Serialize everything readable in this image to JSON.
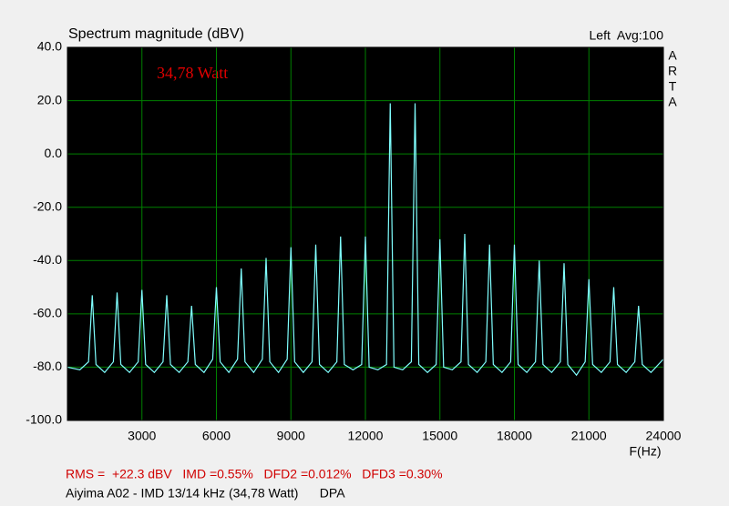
{
  "chart_data": {
    "type": "line",
    "title": "Spectrum magnitude (dBV)",
    "channel_info": "Left  Avg:100",
    "logo": [
      "A",
      "R",
      "T",
      "A"
    ],
    "annotation": "34,78 Watt",
    "x_label": "F(Hz)",
    "results": "RMS =  +22.3 dBV   IMD =0.55%   DFD2 =0.012%   DFD3 =0.30%",
    "caption": "Aiyima A02 - IMD 13/14 kHz (34,78 Watt)      DPA",
    "xlim": [
      0,
      24000
    ],
    "xticks": [
      3000,
      6000,
      9000,
      12000,
      15000,
      18000,
      21000,
      24000
    ],
    "ylim": [
      -100,
      40
    ],
    "yticks": [
      {
        "value": -100,
        "label": "-100.0"
      },
      {
        "value": -80,
        "label": "-80.0"
      },
      {
        "value": -60,
        "label": "-60.0"
      },
      {
        "value": -40,
        "label": "-40.0"
      },
      {
        "value": -20,
        "label": "-20.0"
      },
      {
        "value": 0,
        "label": "0.0"
      },
      {
        "value": 20,
        "label": "20.0"
      },
      {
        "value": 40,
        "label": "40.0"
      }
    ],
    "grid": true,
    "x": [
      0,
      500,
      850,
      1000,
      1150,
      1500,
      1850,
      2000,
      2150,
      2500,
      2850,
      3000,
      3150,
      3500,
      3850,
      4000,
      4150,
      4500,
      4850,
      5000,
      5150,
      5500,
      5850,
      6000,
      6150,
      6500,
      6850,
      7000,
      7150,
      7500,
      7850,
      8000,
      8150,
      8500,
      8850,
      9000,
      9150,
      9500,
      9850,
      10000,
      10150,
      10500,
      10850,
      11000,
      11150,
      11500,
      11850,
      12000,
      12150,
      12500,
      12850,
      13000,
      13150,
      13500,
      13850,
      14000,
      14150,
      14500,
      14850,
      15000,
      15150,
      15500,
      15850,
      16000,
      16150,
      16500,
      16850,
      17000,
      17150,
      17500,
      17850,
      18000,
      18150,
      18500,
      18850,
      19000,
      19150,
      19500,
      19850,
      20000,
      20150,
      20500,
      20850,
      21000,
      21150,
      21500,
      21850,
      22000,
      22150,
      22500,
      22850,
      23000,
      23150,
      23500,
      24000
    ],
    "series": [
      {
        "name": "Spectrum",
        "color": "#80ffff",
        "values": [
          -80,
          -81,
          -78,
          -53,
          -79,
          -82,
          -78,
          -52,
          -79,
          -82,
          -78,
          -51,
          -79,
          -82,
          -78,
          -53,
          -79,
          -82,
          -78,
          -57,
          -79,
          -82,
          -77,
          -50,
          -78,
          -82,
          -77,
          -43,
          -78,
          -82,
          -77,
          -39,
          -78,
          -82,
          -77,
          -35,
          -78,
          -82,
          -78,
          -34,
          -79,
          -82,
          -78,
          -31,
          -79,
          -81,
          -79,
          -31,
          -80,
          -81,
          -79,
          19,
          -80,
          -81,
          -78,
          19,
          -79,
          -82,
          -79,
          -32,
          -80,
          -81,
          -78,
          -30,
          -79,
          -82,
          -78,
          -34,
          -79,
          -82,
          -78,
          -34,
          -79,
          -82,
          -78,
          -40,
          -79,
          -82,
          -78,
          -41,
          -79,
          -83,
          -78,
          -47,
          -79,
          -82,
          -78,
          -50,
          -79,
          -82,
          -78,
          -57,
          -79,
          -82,
          -77
        ]
      }
    ]
  }
}
